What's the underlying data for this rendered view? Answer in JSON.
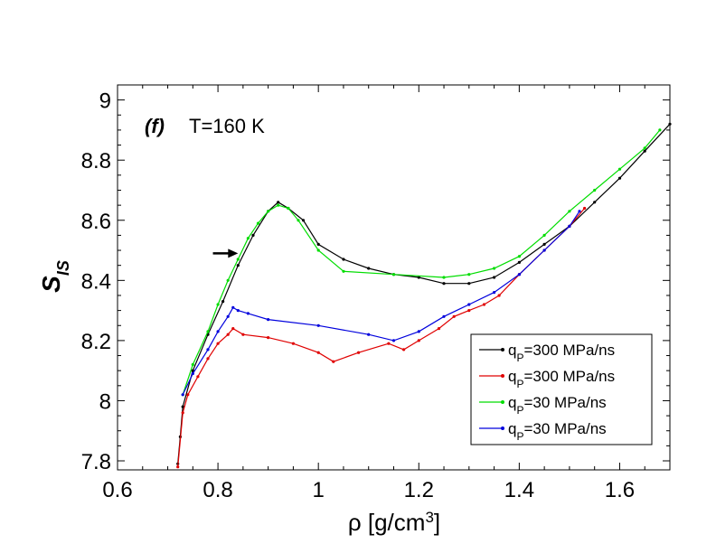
{
  "chart_data": {
    "type": "line",
    "panel_label": "(f)",
    "annotation": "T=160 K",
    "xlabel_prefix": "ρ [g/cm",
    "xlabel_sup": "3",
    "xlabel_suffix": "]",
    "ylabel_main": "S",
    "ylabel_sub": "IS",
    "xlim": [
      0.6,
      1.7
    ],
    "ylim": [
      7.77,
      9.05
    ],
    "xticks": [
      0.6,
      0.8,
      1,
      1.2,
      1.4,
      1.6
    ],
    "xtick_labels": [
      "0.6",
      "0.8",
      "1",
      "1.2",
      "1.4",
      "1.6"
    ],
    "yticks": [
      7.8,
      8,
      8.2,
      8.4,
      8.6,
      8.8,
      9
    ],
    "ytick_labels": [
      "7.8",
      "8",
      "8.2",
      "8.4",
      "8.6",
      "8.8",
      "9"
    ],
    "legend_position": "bottom-right",
    "arrow": {
      "x_start": 0.79,
      "x_end": 0.84,
      "y": 8.49
    },
    "series": [
      {
        "name": "q",
        "name_sub": "P",
        "name_suffix": "=300 MPa/ns",
        "color": "#000000",
        "x": [
          0.72,
          0.725,
          0.73,
          0.75,
          0.78,
          0.81,
          0.84,
          0.87,
          0.9,
          0.92,
          0.94,
          0.97,
          1.0,
          1.05,
          1.1,
          1.15,
          1.2,
          1.25,
          1.3,
          1.35,
          1.4,
          1.45,
          1.5,
          1.55,
          1.6,
          1.65,
          1.7
        ],
        "y": [
          7.79,
          7.88,
          7.98,
          8.1,
          8.22,
          8.33,
          8.45,
          8.55,
          8.63,
          8.66,
          8.64,
          8.6,
          8.52,
          8.47,
          8.44,
          8.42,
          8.41,
          8.39,
          8.39,
          8.41,
          8.46,
          8.52,
          8.58,
          8.66,
          8.74,
          8.83,
          8.92
        ]
      },
      {
        "name": "q",
        "name_sub": "P",
        "name_suffix": "=300 MPa/ns",
        "color": "#e00000",
        "x": [
          0.72,
          0.73,
          0.74,
          0.76,
          0.78,
          0.8,
          0.82,
          0.83,
          0.85,
          0.9,
          0.95,
          1.0,
          1.03,
          1.08,
          1.14,
          1.17,
          1.2,
          1.24,
          1.27,
          1.3,
          1.33,
          1.36,
          1.4,
          1.45,
          1.5,
          1.53
        ],
        "y": [
          7.78,
          7.96,
          8.02,
          8.08,
          8.14,
          8.19,
          8.22,
          8.24,
          8.22,
          8.21,
          8.19,
          8.16,
          8.13,
          8.16,
          8.19,
          8.17,
          8.2,
          8.24,
          8.28,
          8.3,
          8.32,
          8.35,
          8.42,
          8.5,
          8.58,
          8.64
        ]
      },
      {
        "name": "q",
        "name_sub": "P",
        "name_suffix": "=30 MPa/ns",
        "color": "#00dd00",
        "x": [
          0.73,
          0.75,
          0.78,
          0.8,
          0.82,
          0.84,
          0.86,
          0.88,
          0.9,
          0.92,
          0.94,
          0.96,
          1.0,
          1.05,
          1.15,
          1.25,
          1.3,
          1.35,
          1.4,
          1.45,
          1.5,
          1.55,
          1.6,
          1.65,
          1.68
        ],
        "y": [
          8.02,
          8.12,
          8.23,
          8.32,
          8.4,
          8.47,
          8.54,
          8.59,
          8.63,
          8.65,
          8.64,
          8.6,
          8.5,
          8.43,
          8.42,
          8.41,
          8.42,
          8.44,
          8.48,
          8.55,
          8.63,
          8.7,
          8.77,
          8.84,
          8.9
        ]
      },
      {
        "name": "q",
        "name_sub": "P",
        "name_suffix": "=30 MPa/ns",
        "color": "#0000dd",
        "x": [
          0.73,
          0.75,
          0.78,
          0.8,
          0.82,
          0.83,
          0.84,
          0.86,
          0.9,
          1.0,
          1.1,
          1.15,
          1.2,
          1.25,
          1.3,
          1.35,
          1.4,
          1.45,
          1.5,
          1.52
        ],
        "y": [
          8.02,
          8.09,
          8.17,
          8.23,
          8.28,
          8.31,
          8.3,
          8.29,
          8.27,
          8.25,
          8.22,
          8.2,
          8.23,
          8.28,
          8.32,
          8.36,
          8.42,
          8.5,
          8.58,
          8.63
        ]
      }
    ]
  }
}
